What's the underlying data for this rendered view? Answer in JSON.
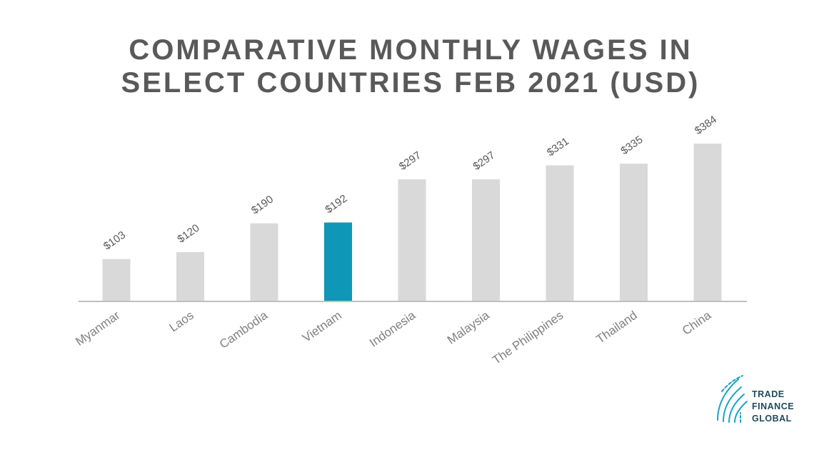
{
  "chart_data": {
    "type": "bar",
    "title_lines": [
      "COMPARATIVE MONTHLY WAGES IN",
      "SELECT COUNTRIES  FEB 2021 (USD)"
    ],
    "categories": [
      "Myanmar",
      "Laos",
      "Cambodia",
      "Vietnam",
      "Indonesia",
      "Malaysia",
      "The Philippines",
      "Thailand",
      "China"
    ],
    "values": [
      103,
      120,
      190,
      192,
      297,
      297,
      331,
      335,
      384
    ],
    "value_labels": [
      "$103",
      "$120",
      "$190",
      "$192",
      "$297",
      "$297",
      "$331",
      "$335",
      "$384"
    ],
    "highlight_category": "Vietnam",
    "xlabel": "",
    "ylabel": "",
    "ylim": [
      0,
      384
    ],
    "grid": false,
    "legend": "none",
    "colors": {
      "bar": "#d9d9d9",
      "highlight": "#0f97b6",
      "axis": "#bfbfbf",
      "title": "#595959",
      "value_label": "#595959",
      "category_label": "#808080"
    }
  },
  "logo": {
    "lines": [
      "TRADE",
      "FINANCE",
      "GLOBAL"
    ],
    "icon": "fingerprint-arc-icon",
    "color_icon": "#1aa3c4",
    "color_text": "#1e4a5c"
  }
}
